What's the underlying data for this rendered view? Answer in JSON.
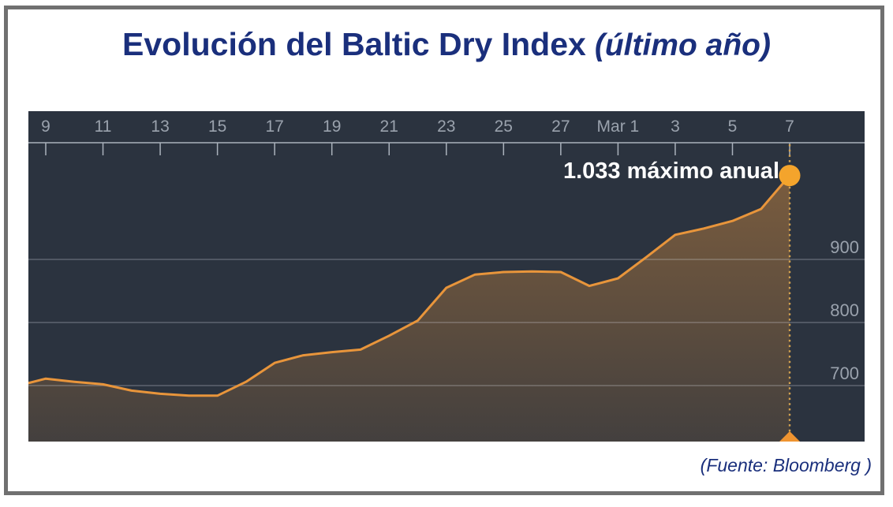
{
  "title": {
    "main": "Evolución del Baltic Dry Index",
    "suffix": "(último año)"
  },
  "source": {
    "label": "(Fuente: Bloomberg )"
  },
  "colors": {
    "frame_border": "#707070",
    "title_navy": "#1a2f7c",
    "chart_background": "#2b333f",
    "axis_label": "#9aa2ad",
    "axis_line": "#aab2bc",
    "gridline": "rgba(228,234,241,0.28)",
    "series_line": "#e8953b",
    "area_fill_top": "rgba(233,150,60,0.42)",
    "area_fill_bottom": "rgba(233,150,60,0.13)",
    "dotted_guide": "#d2a150",
    "marker_dot": "#f4a42c",
    "marker_triangle": "#ef9430",
    "annotation_text": "#ffffff"
  },
  "chart_data": {
    "type": "area",
    "title": "Evolución del Baltic Dry Index (último año)",
    "xlabel": "",
    "ylabel": "",
    "grid": true,
    "legend": false,
    "x_axis": {
      "position": "top",
      "tick_labels": [
        "9",
        "11",
        "13",
        "15",
        "17",
        "19",
        "21",
        "23",
        "25",
        "27",
        "Mar 1",
        "3",
        "5",
        "7"
      ],
      "tick_day_offsets": [
        0,
        2,
        4,
        6,
        8,
        10,
        12,
        14,
        16,
        18,
        20,
        22,
        24,
        26
      ]
    },
    "y_axis": {
      "position": "right",
      "ticks": [
        900,
        800,
        700
      ],
      "visible_range": [
        611,
        1084
      ]
    },
    "series": [
      {
        "name": "Baltic Dry Index",
        "points": [
          {
            "date": "Feb 8",
            "day": -0.6,
            "value": 704
          },
          {
            "date": "Feb 9",
            "day": 0,
            "value": 711
          },
          {
            "date": "Feb 10",
            "day": 1,
            "value": 706
          },
          {
            "date": "Feb 11",
            "day": 2,
            "value": 702
          },
          {
            "date": "Feb 12",
            "day": 3,
            "value": 692
          },
          {
            "date": "Feb 13",
            "day": 4,
            "value": 687
          },
          {
            "date": "Feb 14",
            "day": 5,
            "value": 684
          },
          {
            "date": "Feb 15",
            "day": 6,
            "value": 684
          },
          {
            "date": "Feb 16",
            "day": 7,
            "value": 706
          },
          {
            "date": "Feb 17",
            "day": 8,
            "value": 736
          },
          {
            "date": "Feb 18",
            "day": 9,
            "value": 748
          },
          {
            "date": "Feb 19",
            "day": 10,
            "value": 753
          },
          {
            "date": "Feb 20",
            "day": 11,
            "value": 757
          },
          {
            "date": "Feb 21",
            "day": 12,
            "value": 779
          },
          {
            "date": "Feb 22",
            "day": 13,
            "value": 803
          },
          {
            "date": "Feb 23",
            "day": 14,
            "value": 855
          },
          {
            "date": "Feb 24",
            "day": 15,
            "value": 876
          },
          {
            "date": "Feb 25",
            "day": 16,
            "value": 880
          },
          {
            "date": "Feb 26",
            "day": 17,
            "value": 881
          },
          {
            "date": "Feb 27",
            "day": 18,
            "value": 880
          },
          {
            "date": "Feb 28",
            "day": 19,
            "value": 858
          },
          {
            "date": "Mar 1",
            "day": 20,
            "value": 870
          },
          {
            "date": "Mar 2",
            "day": 21,
            "value": 904
          },
          {
            "date": "Mar 3",
            "day": 22,
            "value": 939
          },
          {
            "date": "Mar 4",
            "day": 23,
            "value": 949
          },
          {
            "date": "Mar 5",
            "day": 24,
            "value": 961
          },
          {
            "date": "Mar 6",
            "day": 25,
            "value": 980
          },
          {
            "date": "Mar 7",
            "day": 26,
            "value": 1033
          }
        ]
      }
    ],
    "annotation": {
      "text": "1.033 máximo anual",
      "value": 1033,
      "date": "Mar 7"
    }
  }
}
